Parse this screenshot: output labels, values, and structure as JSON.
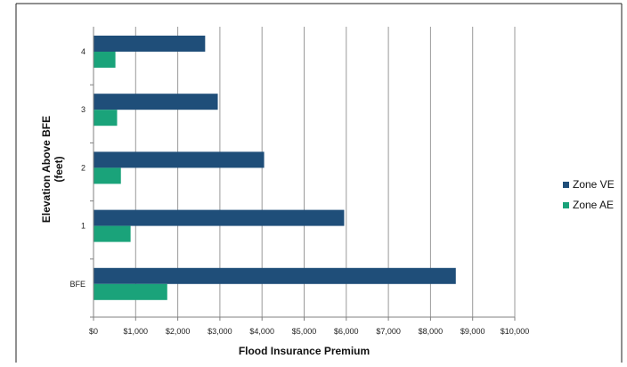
{
  "chart_data": {
    "type": "bar",
    "orientation": "horizontal",
    "categories": [
      "4",
      "3",
      "2",
      "1",
      "BFE"
    ],
    "series": [
      {
        "name": "Zone VE",
        "color": "#1f4e79",
        "values": [
          2650,
          2950,
          4050,
          5950,
          8600
        ]
      },
      {
        "name": "Zone AE",
        "color": "#1aa37a",
        "values": [
          520,
          560,
          650,
          880,
          1750
        ]
      }
    ],
    "x_ticks": [
      "$0",
      "$1,000",
      "$2,000",
      "$3,000",
      "$4,000",
      "$5,000",
      "$6,000",
      "$7,000",
      "$8,000",
      "$9,000",
      "$10,000"
    ],
    "xlim": [
      0,
      10000
    ],
    "xlabel": "Flood Insurance Premium",
    "ylabel": "Elevation Above BFE (feet)",
    "ylabel_lines": [
      "Elevation Above BFE",
      "(feet)"
    ],
    "grid": "vertical",
    "legend_position": "right",
    "colors": {
      "axis": "#808080",
      "grid": "#9a9a9a",
      "frame": "#222222"
    }
  }
}
